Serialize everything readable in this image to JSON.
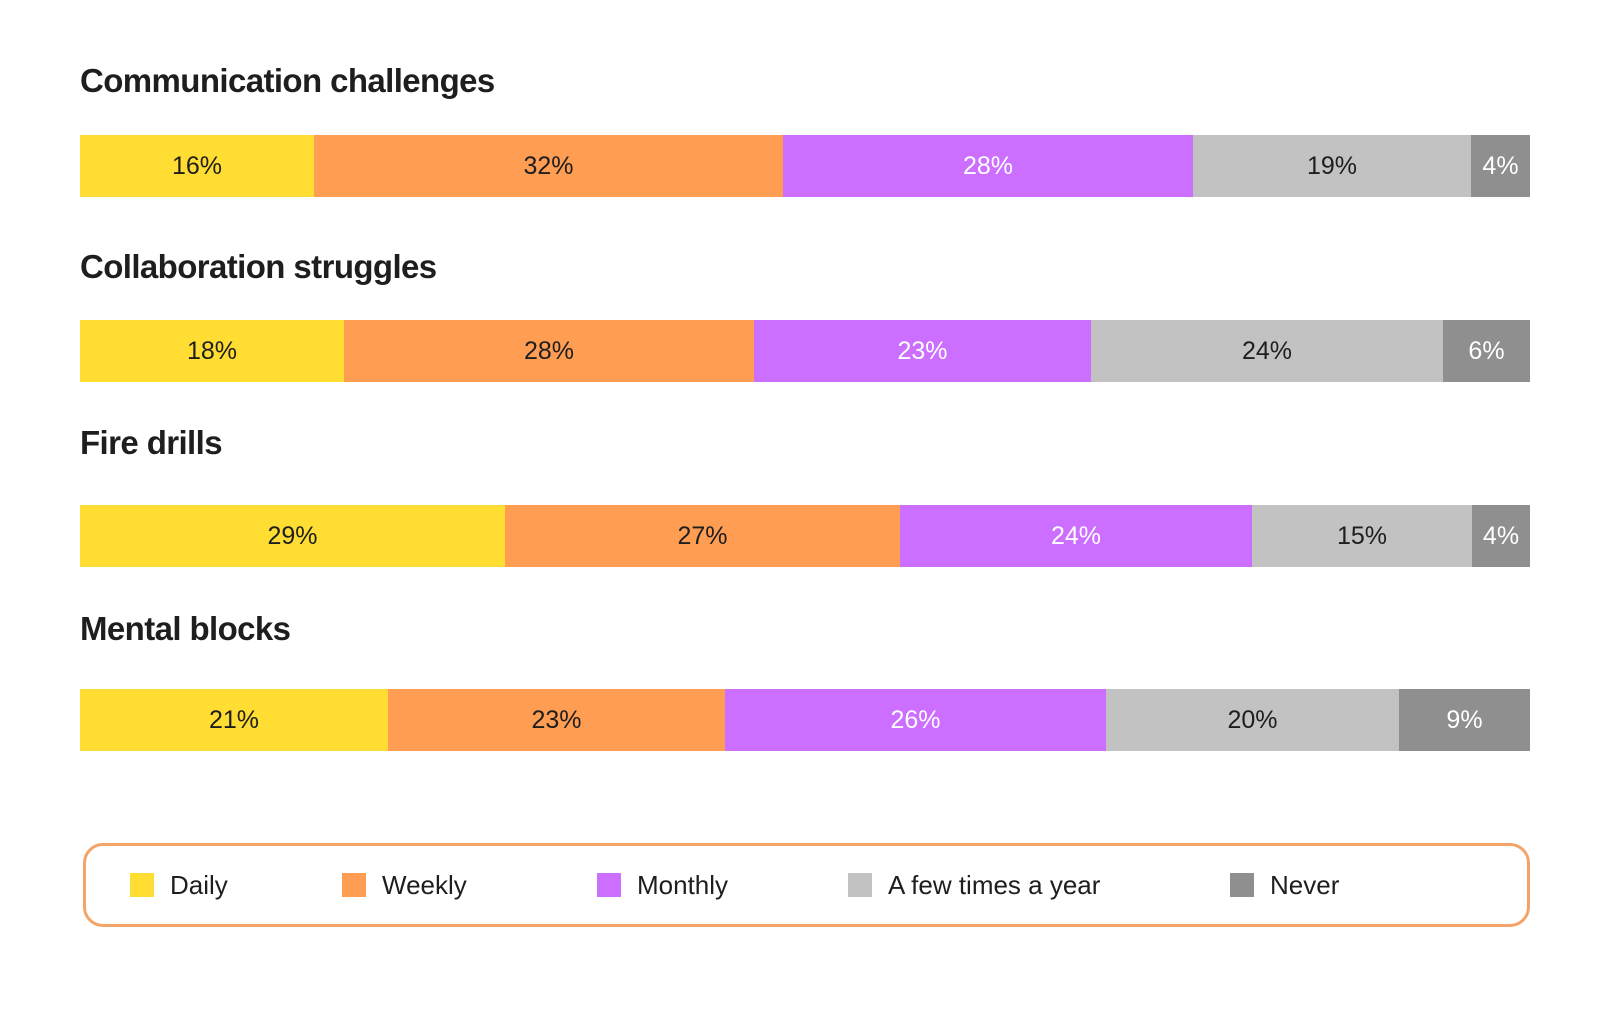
{
  "chart_data": {
    "type": "bar",
    "orientation": "horizontal-stacked-100",
    "categories": [
      "Communication challenges",
      "Collaboration struggles",
      "Fire drills",
      "Mental blocks"
    ],
    "series": [
      {
        "name": "Daily",
        "color": "#ffdd33",
        "text_color": "#1e1e1e",
        "values": [
          16,
          18,
          29,
          21
        ]
      },
      {
        "name": "Weekly",
        "color": "#ff9d52",
        "text_color": "#1e1e1e",
        "values": [
          32,
          28,
          27,
          23
        ]
      },
      {
        "name": "Monthly",
        "color": "#cc6eff",
        "text_color": "#ffffff",
        "values": [
          28,
          23,
          24,
          26
        ]
      },
      {
        "name": "A few times a year",
        "color": "#c2c2c2",
        "text_color": "#1e1e1e",
        "values": [
          19,
          24,
          15,
          20
        ]
      },
      {
        "name": "Never",
        "color": "#8f8f8f",
        "text_color": "#ffffff",
        "values": [
          4,
          6,
          4,
          9
        ]
      }
    ],
    "value_suffix": "%",
    "legend_position": "bottom",
    "grid": false
  }
}
